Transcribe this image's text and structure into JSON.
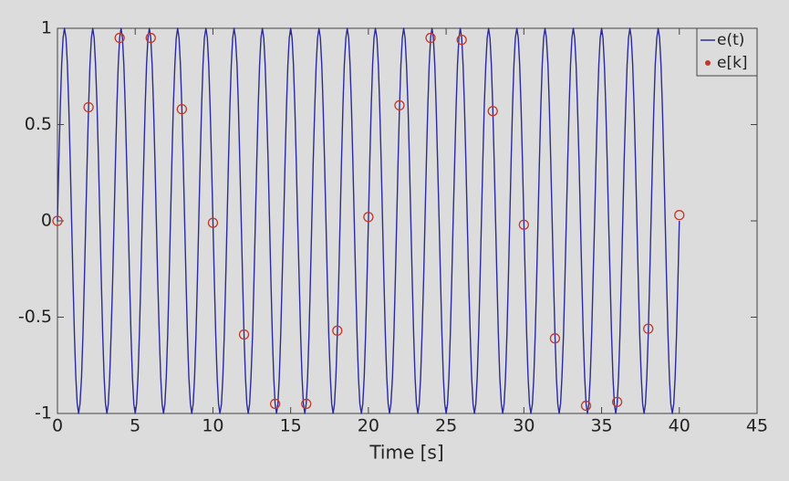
{
  "chart_data": {
    "type": "line",
    "xlabel": "Time [s]",
    "xlim": [
      0,
      45
    ],
    "xticks": [
      0,
      5,
      10,
      15,
      20,
      25,
      30,
      35,
      40,
      45
    ],
    "ylim": [
      -1,
      1
    ],
    "yticks": [
      -1,
      -0.5,
      0,
      0.5,
      1
    ],
    "grid": false,
    "legend": "northeast",
    "series": [
      {
        "name": "e(t)",
        "color": "#2b2b9e",
        "style": "line",
        "x": [
          0,
          0.09,
          0.18,
          0.27,
          0.36,
          0.45,
          0.55,
          0.64,
          0.73,
          0.82,
          0.91,
          1,
          1.09,
          1.18,
          1.27,
          1.36,
          1.45,
          1.55,
          1.64,
          1.73,
          1.82,
          1.91,
          2,
          2.09,
          2.18,
          2.27,
          2.36,
          2.45,
          2.55,
          2.64,
          2.73,
          2.82,
          2.91,
          3,
          3.09,
          3.18,
          3.27,
          3.36,
          3.45,
          3.55,
          3.64,
          3.73,
          3.82,
          3.91,
          4,
          4.09,
          4.18,
          4.27,
          4.36,
          4.45,
          4.55,
          4.64,
          4.73,
          4.82,
          4.91,
          5,
          5.09,
          5.18,
          5.27,
          5.36,
          5.45,
          5.55,
          5.64,
          5.73,
          5.82,
          5.91,
          6,
          6.09,
          6.18,
          6.27,
          6.36,
          6.45,
          6.55,
          6.64,
          6.73,
          6.82,
          6.91,
          7,
          7.09,
          7.18,
          7.27,
          7.36,
          7.45,
          7.55,
          7.64,
          7.73,
          7.82,
          7.91,
          8,
          8.09,
          8.18,
          8.27,
          8.36,
          8.45,
          8.55,
          8.64,
          8.73,
          8.82,
          8.91,
          9,
          9.09,
          9.18,
          9.27,
          9.36,
          9.45,
          9.55,
          9.64,
          9.73,
          9.82,
          9.91,
          10,
          10.09,
          10.18,
          10.27,
          10.36,
          10.45,
          10.55,
          10.64,
          10.73,
          10.82,
          10.91,
          11,
          11.09,
          11.18,
          11.27,
          11.36,
          11.45,
          11.55,
          11.64,
          11.73,
          11.82,
          11.91,
          12,
          12.09,
          12.18,
          12.27,
          12.36,
          12.45,
          12.55,
          12.64,
          12.73,
          12.82,
          12.91,
          13,
          13.09,
          13.18,
          13.27,
          13.36,
          13.45,
          13.55,
          13.64,
          13.73,
          13.82,
          13.91,
          14,
          14.09,
          14.18,
          14.27,
          14.36,
          14.45,
          14.55,
          14.64,
          14.73,
          14.82,
          14.91,
          15,
          15.09,
          15.18,
          15.27,
          15.36,
          15.45,
          15.55,
          15.64,
          15.73,
          15.82,
          15.91,
          16,
          16.09,
          16.18,
          16.27,
          16.36,
          16.45,
          16.55,
          16.64,
          16.73,
          16.82,
          16.91,
          17,
          17.09,
          17.18,
          17.27,
          17.36,
          17.45,
          17.55,
          17.64,
          17.73,
          17.82,
          17.91,
          18,
          18.09,
          18.18,
          18.27,
          18.36,
          18.45,
          18.55,
          18.64,
          18.73,
          18.82,
          18.91,
          19,
          19.09,
          19.18,
          19.27,
          19.36,
          19.45,
          19.55,
          19.64,
          19.73,
          19.82,
          19.91,
          20,
          20.09,
          20.18,
          20.27,
          20.36,
          20.45,
          20.55,
          20.64,
          20.73,
          20.82,
          20.91,
          21,
          21.09,
          21.18,
          21.27,
          21.36,
          21.45,
          21.55,
          21.64,
          21.73,
          21.82,
          21.91,
          22,
          22.09,
          22.18,
          22.27,
          22.36,
          22.45,
          22.55,
          22.64,
          22.73,
          22.82,
          22.91,
          23,
          23.09,
          23.18,
          23.27,
          23.36,
          23.45,
          23.55,
          23.64,
          23.73,
          23.82,
          23.91,
          24,
          24.09,
          24.18,
          24.27,
          24.36,
          24.45,
          24.55,
          24.64,
          24.73,
          24.82,
          24.91,
          25,
          25.09,
          25.18,
          25.27,
          25.36,
          25.45,
          25.55,
          25.64,
          25.73,
          25.82,
          25.91,
          26,
          26.09,
          26.18,
          26.27,
          26.36,
          26.45,
          26.55,
          26.64,
          26.73,
          26.82,
          26.91,
          27,
          27.09,
          27.18,
          27.27,
          27.36,
          27.45,
          27.55,
          27.64,
          27.73,
          27.82,
          27.91,
          28,
          28.09,
          28.18,
          28.27,
          28.36,
          28.45,
          28.55,
          28.64,
          28.73,
          28.82,
          28.91,
          29,
          29.09,
          29.18,
          29.27,
          29.36,
          29.45,
          29.55,
          29.64,
          29.73,
          29.82,
          29.91,
          30,
          30.09,
          30.18,
          30.27,
          30.36,
          30.45,
          30.55,
          30.64,
          30.73,
          30.82,
          30.91,
          31,
          31.09,
          31.18,
          31.27,
          31.36,
          31.45,
          31.55,
          31.64,
          31.73,
          31.82,
          31.91,
          32,
          32.09,
          32.18,
          32.27,
          32.36,
          32.45,
          32.55,
          32.64,
          32.73,
          32.82,
          32.91,
          33,
          33.09,
          33.18,
          33.27,
          33.36,
          33.45,
          33.55,
          33.64,
          33.73,
          33.82,
          33.91,
          34,
          34.09,
          34.18,
          34.27,
          34.36,
          34.45,
          34.55,
          34.64,
          34.73,
          34.82,
          34.91,
          35,
          35.09,
          35.18,
          35.27,
          35.36,
          35.45,
          35.55,
          35.64,
          35.73,
          35.82,
          35.91,
          36,
          36.09,
          36.18,
          36.27,
          36.36,
          36.45,
          36.55,
          36.64,
          36.73,
          36.82,
          36.91,
          37,
          37.09,
          37.18,
          37.27,
          37.36,
          37.45,
          37.55,
          37.64,
          37.73,
          37.82,
          37.91,
          38,
          38.09,
          38.18,
          38.27,
          38.36,
          38.45,
          38.55,
          38.64,
          38.73,
          38.82,
          38.91,
          39,
          39.09,
          39.18,
          39.27,
          39.36,
          39.45,
          39.55,
          39.64,
          39.73,
          39.82,
          39.91,
          40
        ],
        "values": [
          0,
          0.31,
          0.59,
          0.81,
          0.95,
          1,
          0.95,
          0.81,
          0.59,
          0.31,
          0,
          -0.31,
          -0.59,
          -0.81,
          -0.95,
          -1,
          -0.95,
          -0.81,
          -0.59,
          -0.31,
          0,
          0.31,
          0.59,
          0.81,
          0.95,
          1,
          0.95,
          0.81,
          0.59,
          0.31,
          0,
          -0.31,
          -0.59,
          -0.81,
          -0.95,
          -1,
          -0.95,
          -0.81,
          -0.59,
          -0.31,
          0,
          0.31,
          0.59,
          0.81,
          0.95,
          1,
          0.95,
          0.81,
          0.59,
          0.31,
          0,
          -0.31,
          -0.59,
          -0.81,
          -0.95,
          -1,
          -0.95,
          -0.81,
          -0.59,
          -0.31,
          0,
          0.31,
          0.59,
          0.81,
          0.95,
          1,
          0.95,
          0.81,
          0.59,
          0.31,
          0,
          -0.31,
          -0.59,
          -0.81,
          -0.95,
          -1,
          -0.95,
          -0.81,
          -0.59,
          -0.31,
          0,
          0.31,
          0.59,
          0.81,
          0.95,
          1,
          0.95,
          0.81,
          0.59,
          0.31,
          0,
          -0.31,
          -0.59,
          -0.81,
          -0.95,
          -1,
          -0.95,
          -0.81,
          -0.59,
          -0.31,
          0,
          0.31,
          0.59,
          0.81,
          0.95,
          1,
          0.95,
          0.81,
          0.59,
          0.31,
          0,
          -0.31,
          -0.59,
          -0.81,
          -0.95,
          -1,
          -0.95,
          -0.81,
          -0.59,
          -0.31,
          0,
          0.31,
          0.59,
          0.81,
          0.95,
          1,
          0.95,
          0.81,
          0.59,
          0.31,
          0,
          -0.31,
          -0.59,
          -0.81,
          -0.95,
          -1,
          -0.95,
          -0.81,
          -0.59,
          -0.31,
          0,
          0.31,
          0.59,
          0.81,
          0.95,
          1,
          0.95,
          0.81,
          0.59,
          0.31,
          0,
          -0.31,
          -0.59,
          -0.81,
          -0.95,
          -1,
          -0.95,
          -0.81,
          -0.59,
          -0.31,
          0,
          0.31,
          0.59,
          0.81,
          0.95,
          1,
          0.95,
          0.81,
          0.59,
          0.31,
          0,
          -0.31,
          -0.59,
          -0.81,
          -0.95,
          -1,
          -0.95,
          -0.81,
          -0.59,
          -0.31,
          0,
          0.31,
          0.59,
          0.81,
          0.95,
          1,
          0.95,
          0.81,
          0.59,
          0.31,
          0,
          -0.31,
          -0.59,
          -0.81,
          -0.95,
          -1,
          -0.95,
          -0.81,
          -0.59,
          -0.31,
          0,
          0.31,
          0.59,
          0.81,
          0.95,
          1,
          0.95,
          0.81,
          0.59,
          0.31,
          0,
          -0.31,
          -0.59,
          -0.81,
          -0.95,
          -1,
          -0.95,
          -0.81,
          -0.59,
          -0.31,
          0,
          0.31,
          0.59,
          0.81,
          0.95,
          1,
          0.95,
          0.81,
          0.59,
          0.31,
          0,
          -0.31,
          -0.59,
          -0.81,
          -0.95,
          -1,
          -0.95,
          -0.81,
          -0.59,
          -0.31,
          0,
          0.31,
          0.59,
          0.81,
          0.95,
          1,
          0.95,
          0.81,
          0.59,
          0.31,
          0,
          -0.31,
          -0.59,
          -0.81,
          -0.95,
          -1,
          -0.95,
          -0.81,
          -0.59,
          -0.31,
          0,
          0.31,
          0.59,
          0.81,
          0.95,
          1,
          0.95,
          0.81,
          0.59,
          0.31,
          0,
          -0.31,
          -0.59,
          -0.81,
          -0.95,
          -1,
          -0.95,
          -0.81,
          -0.59,
          -0.31,
          0,
          0.31,
          0.59,
          0.81,
          0.95,
          1,
          0.95,
          0.81,
          0.59,
          0.31,
          0,
          -0.31,
          -0.59,
          -0.81,
          -0.95,
          -1,
          -0.95,
          -0.81,
          -0.59,
          -0.31,
          0,
          0.31,
          0.59,
          0.81,
          0.95,
          1,
          0.95,
          0.81,
          0.59,
          0.31,
          0,
          -0.31,
          -0.59,
          -0.81,
          -0.95,
          -1,
          -0.95,
          -0.81,
          -0.59,
          -0.31,
          0,
          0.31,
          0.59,
          0.81,
          0.95,
          1,
          0.95,
          0.81,
          0.59,
          0.31,
          0,
          -0.31,
          -0.59,
          -0.81,
          -0.95,
          -1,
          -0.95,
          -0.81,
          -0.59,
          -0.31,
          0,
          0.31,
          0.59,
          0.81,
          0.95,
          1,
          0.95,
          0.81,
          0.59,
          0.31,
          0,
          -0.31,
          -0.59,
          -0.81,
          -0.95,
          -1,
          -0.95,
          -0.81,
          -0.59,
          -0.31,
          0,
          0.31,
          0.59,
          0.81,
          0.95,
          1,
          0.95,
          0.81,
          0.59,
          0.31,
          0,
          -0.31,
          -0.59,
          -0.81,
          -0.95,
          -1,
          -0.95,
          -0.81,
          -0.59,
          -0.31,
          0,
          0.31,
          0.59,
          0.81,
          0.95,
          1,
          0.95,
          0.81,
          0.59,
          0.31,
          0,
          -0.31,
          -0.59,
          -0.81,
          -0.95,
          -1,
          -0.95,
          -0.81,
          -0.59,
          -0.31,
          0,
          0.31,
          0.59,
          0.81,
          0.95,
          1,
          0.95,
          0.81,
          0.59,
          0.31,
          0,
          -0.31,
          -0.59,
          -0.81,
          -0.95,
          -1,
          -0.95,
          -0.81,
          -0.59,
          -0.31,
          0,
          0.31,
          0.59,
          0.81,
          0.95,
          1,
          0.95,
          0.81,
          0.59,
          0.31,
          0,
          -0.31,
          -0.59,
          -0.81,
          -0.95,
          -1,
          -0.95,
          -0.81,
          -0.59,
          -0.31,
          0
        ]
      },
      {
        "name": "e[k]",
        "color": "#c0392b",
        "style": "marker",
        "x": [
          0,
          2,
          4,
          6,
          8,
          10,
          12,
          14,
          16,
          18,
          20,
          22,
          24,
          26,
          28,
          30,
          32,
          34,
          36,
          38,
          40
        ],
        "values": [
          0,
          0.59,
          0.95,
          0.95,
          0.58,
          -0.01,
          -0.59,
          -0.95,
          -0.95,
          -0.57,
          0.02,
          0.6,
          0.95,
          0.94,
          0.57,
          -0.02,
          -0.61,
          -0.96,
          -0.94,
          -0.56,
          0.03
        ]
      }
    ]
  }
}
